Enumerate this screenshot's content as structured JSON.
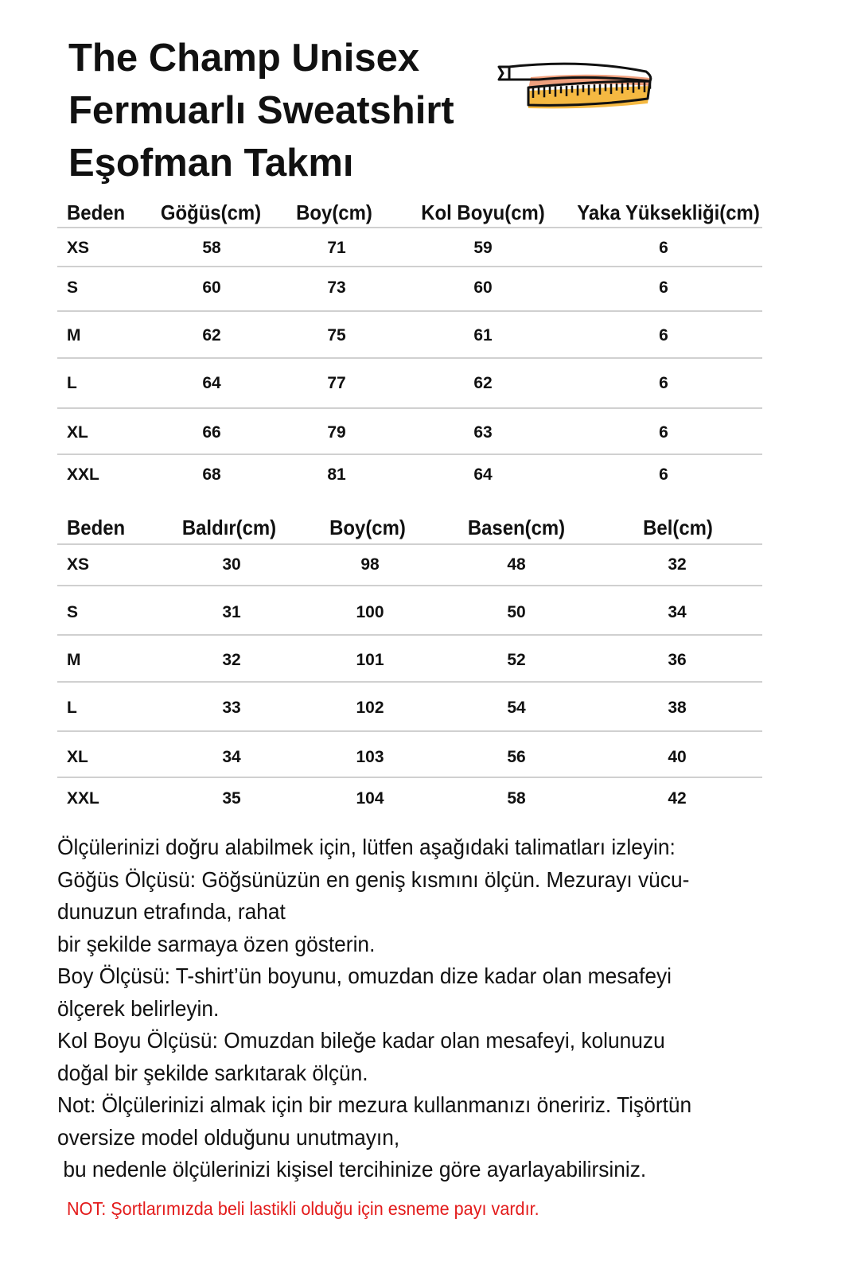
{
  "title": [
    "The Champ Unisex",
    "Fermuarlı Sweatshirt",
    "Eşofman Takmı"
  ],
  "icons": {
    "tape": "measuring-tape-icon"
  },
  "colors": {
    "note": "#e31b1b",
    "tape_orange": "#f0a07e",
    "tape_yellow": "#f5b942"
  },
  "top_table": {
    "headers": [
      "Beden",
      "Göğüs(cm)",
      "Boy(cm)",
      "Kol Boyu(cm)",
      "Yaka Yüksekliği(cm)"
    ],
    "rows": [
      [
        "XS",
        "58",
        "71",
        "59",
        "6"
      ],
      [
        "S",
        "60",
        "73",
        "60",
        "6"
      ],
      [
        "M",
        "62",
        "75",
        "61",
        "6"
      ],
      [
        "L",
        "64",
        "77",
        "62",
        "6"
      ],
      [
        "XL",
        "66",
        "79",
        "63",
        "6"
      ],
      [
        "XXL",
        "68",
        "81",
        "64",
        "6"
      ]
    ]
  },
  "bottom_table": {
    "headers": [
      "Beden",
      "Baldır(cm)",
      "Boy(cm)",
      "Basen(cm)",
      "Bel(cm)"
    ],
    "rows": [
      [
        "XS",
        "30",
        "98",
        "48",
        "32"
      ],
      [
        "S",
        "31",
        "100",
        "50",
        "34"
      ],
      [
        "M",
        "32",
        "101",
        "52",
        "36"
      ],
      [
        "L",
        "33",
        "102",
        "54",
        "38"
      ],
      [
        "XL",
        "34",
        "103",
        "56",
        "40"
      ],
      [
        "XXL",
        "35",
        "104",
        "58",
        "42"
      ]
    ]
  },
  "instructions": [
    "Ölçülerinizi doğru alabilmek için, lütfen aşağıdaki talimatları izleyin:",
    "Göğüs Ölçüsü: Göğsünüzün en geniş kısmını ölçün. Mezurayı vücu-",
    "dunuzun etrafında, rahat",
    "bir şekilde sarmaya özen gösterin.",
    "Boy Ölçüsü: T-shirt’ün boyunu, omuzdan dize kadar olan mesafeyi",
    "ölçerek belirleyin.",
    "Kol Boyu Ölçüsü: Omuzdan bileğe kadar olan mesafeyi, kolunuzu",
    "doğal bir şekilde sarkıtarak ölçün.",
    "Not: Ölçülerinizi almak için bir mezura kullanmanızı öneririz. Tişörtün",
    "oversize model olduğunu unutmayın,",
    " bu nedenle ölçülerinizi kişisel tercihinize göre ayarlayabilirsiniz."
  ],
  "note": "NOT: Şortlarımızda beli lastikli olduğu için esneme payı vardır."
}
